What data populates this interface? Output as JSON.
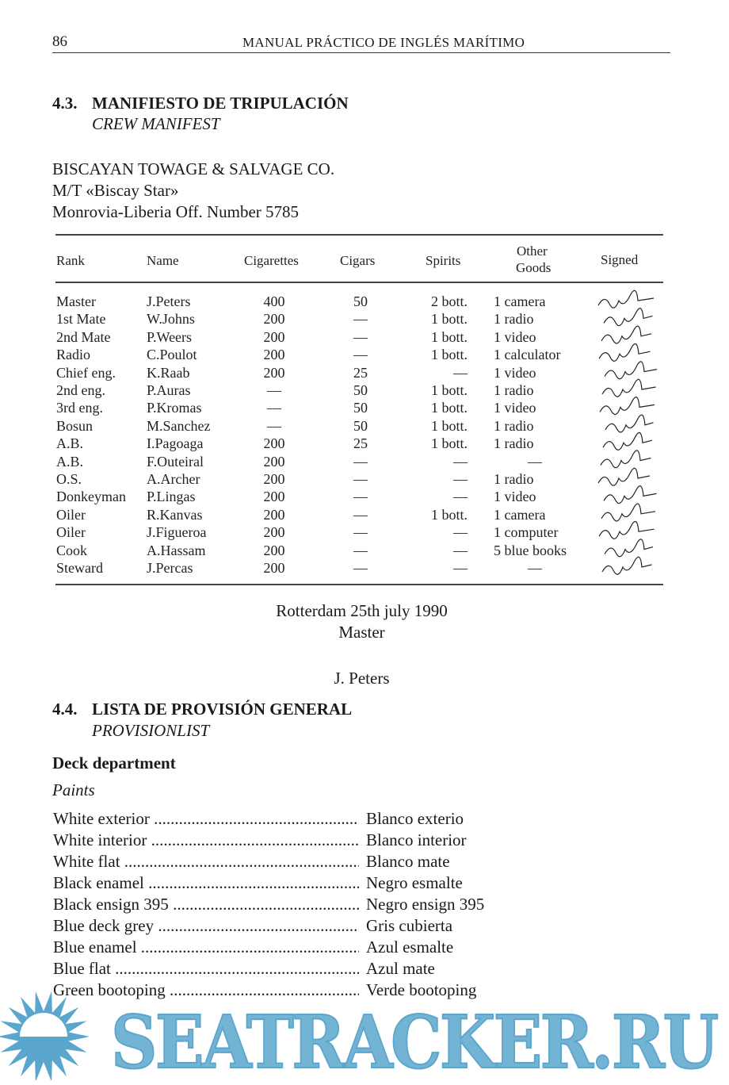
{
  "header": {
    "page_number": "86",
    "running_title": "MANUAL PRÁCTICO DE INGLÉS MARÍTIMO"
  },
  "section_43": {
    "number": "4.3.",
    "title": "MANIFIESTO DE TRIPULACIÓN",
    "subtitle": "CREW MANIFEST"
  },
  "company": {
    "name": "BISCAYAN TOWAGE & SALVAGE CO.",
    "vessel": "M/T «Biscay Star»",
    "registry": "Monrovia-Liberia Off. Number 5785"
  },
  "table": {
    "headers": {
      "rank": "Rank",
      "name": "Name",
      "cigarettes": "Cigarettes",
      "cigars": "Cigars",
      "spirits": "Spirits",
      "other_1": "Other",
      "other_2": "Goods",
      "signed": "Signed"
    },
    "rows": [
      {
        "rank": "Master",
        "name": "J.Peters",
        "cigarettes": "400",
        "cigars": "50",
        "spirits": "2 bott.",
        "other": "1 camera"
      },
      {
        "rank": "1st Mate",
        "name": "W.Johns",
        "cigarettes": "200",
        "cigars": "—",
        "spirits": "1 bott.",
        "other": "1 radio"
      },
      {
        "rank": "2nd Mate",
        "name": "P.Weers",
        "cigarettes": "200",
        "cigars": "—",
        "spirits": "1 bott.",
        "other": "1 video"
      },
      {
        "rank": "Radio",
        "name": "C.Poulot",
        "cigarettes": "200",
        "cigars": "—",
        "spirits": "1 bott.",
        "other": "1 calculator"
      },
      {
        "rank": "Chief eng.",
        "name": "K.Raab",
        "cigarettes": "200",
        "cigars": "25",
        "spirits": "—",
        "other": "1 video"
      },
      {
        "rank": "2nd eng.",
        "name": "P.Auras",
        "cigarettes": "—",
        "cigars": "50",
        "spirits": "1 bott.",
        "other": "1 radio"
      },
      {
        "rank": "3rd eng.",
        "name": "P.Kromas",
        "cigarettes": "—",
        "cigars": "50",
        "spirits": "1 bott.",
        "other": "1 video"
      },
      {
        "rank": "Bosun",
        "name": "M.Sanchez",
        "cigarettes": "—",
        "cigars": "50",
        "spirits": "1 bott.",
        "other": "1 radio"
      },
      {
        "rank": "A.B.",
        "name": "I.Pagoaga",
        "cigarettes": "200",
        "cigars": "25",
        "spirits": "1 bott.",
        "other": "1 radio"
      },
      {
        "rank": "A.B.",
        "name": "F.Outeiral",
        "cigarettes": "200",
        "cigars": "—",
        "spirits": "—",
        "other": "—"
      },
      {
        "rank": "O.S.",
        "name": "A.Archer",
        "cigarettes": "200",
        "cigars": "—",
        "spirits": "—",
        "other": "1 radio"
      },
      {
        "rank": "Donkeyman",
        "name": "P.Lingas",
        "cigarettes": "200",
        "cigars": "—",
        "spirits": "—",
        "other": "1 video"
      },
      {
        "rank": "Oiler",
        "name": "R.Kanvas",
        "cigarettes": "200",
        "cigars": "—",
        "spirits": "1 bott.",
        "other": "1 camera"
      },
      {
        "rank": "Oiler",
        "name": "J.Figueroa",
        "cigarettes": "200",
        "cigars": "—",
        "spirits": "—",
        "other": "1 computer"
      },
      {
        "rank": "Cook",
        "name": "A.Hassam",
        "cigarettes": "200",
        "cigars": "—",
        "spirits": "—",
        "other": "5 blue books"
      },
      {
        "rank": "Steward",
        "name": "J.Percas",
        "cigarettes": "200",
        "cigars": "—",
        "spirits": "—",
        "other": "—"
      }
    ]
  },
  "closing": {
    "place_date": "Rotterdam 25th july 1990",
    "role": "Master",
    "signatory": "J. Peters"
  },
  "section_44": {
    "number": "4.4.",
    "title": "LISTA DE PROVISIÓN GENERAL",
    "subtitle": "PROVISIONLIST"
  },
  "deck": {
    "heading": "Deck department",
    "subheading": "Paints"
  },
  "paints": [
    {
      "en": "White exterior",
      "es": "Blanco exterio"
    },
    {
      "en": "White interior",
      "es": "Blanco interior"
    },
    {
      "en": "White flat",
      "es": "Blanco mate"
    },
    {
      "en": "Black enamel",
      "es": "Negro esmalte"
    },
    {
      "en": "Black ensign 395",
      "es": "Negro ensign 395"
    },
    {
      "en": "Blue deck grey",
      "es": "Gris cubierta"
    },
    {
      "en": "Blue enamel",
      "es": "Azul esmalte"
    },
    {
      "en": "Blue flat",
      "es": "Azul mate"
    },
    {
      "en": "Green bootoping",
      "es": "Verde bootoping"
    }
  ],
  "watermark": {
    "text": "SEATRACKER.RU",
    "color": "#5aa6cc"
  }
}
